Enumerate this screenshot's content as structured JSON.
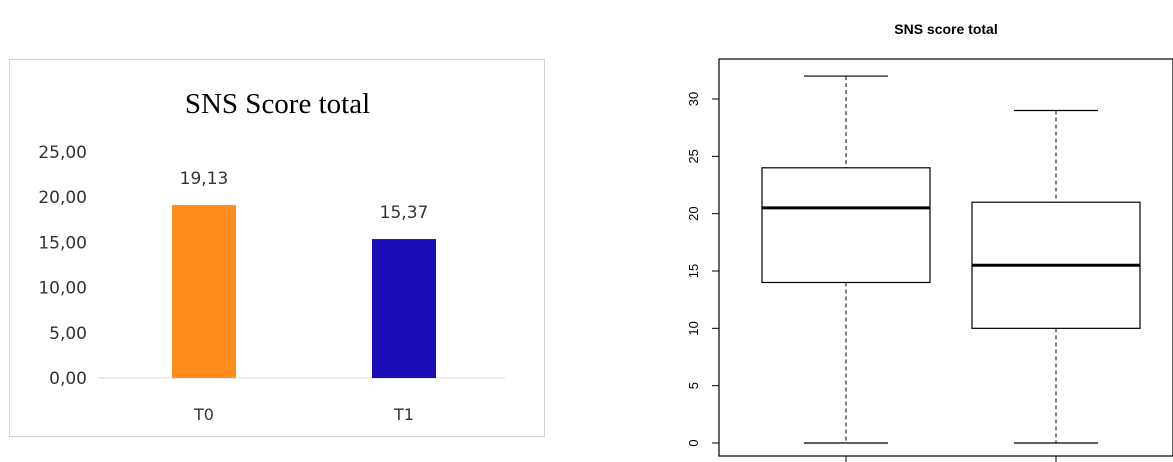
{
  "chart_data": [
    {
      "type": "bar",
      "title": "SNS Score total",
      "categories": [
        "T0",
        "T1"
      ],
      "values": [
        19.13,
        15.37
      ],
      "value_labels": [
        "19,13",
        "15,37"
      ],
      "colors": [
        "#ff8c1a",
        "#1a0db8"
      ],
      "ylim": [
        0,
        25
      ],
      "yticks": [
        0,
        5,
        10,
        15,
        20,
        25
      ],
      "ytick_labels": [
        "0,00",
        "5,00",
        "10,00",
        "15,00",
        "20,00",
        "25,00"
      ],
      "grid": false,
      "legend": "none"
    },
    {
      "type": "box",
      "title": "SNS score total",
      "yticks": [
        0,
        5,
        10,
        15,
        20,
        25,
        30
      ],
      "ytick_labels": [
        "0",
        "5",
        "10",
        "15",
        "20",
        "25",
        "30"
      ],
      "ylim": [
        -1.2,
        33.4
      ],
      "boxes": [
        {
          "min": 0,
          "q1": 14,
          "median": 20.5,
          "q3": 24,
          "max": 32
        },
        {
          "min": 0,
          "q1": 10,
          "median": 15.5,
          "q3": 21,
          "max": 29
        }
      ],
      "grid": false,
      "legend": "none"
    }
  ]
}
